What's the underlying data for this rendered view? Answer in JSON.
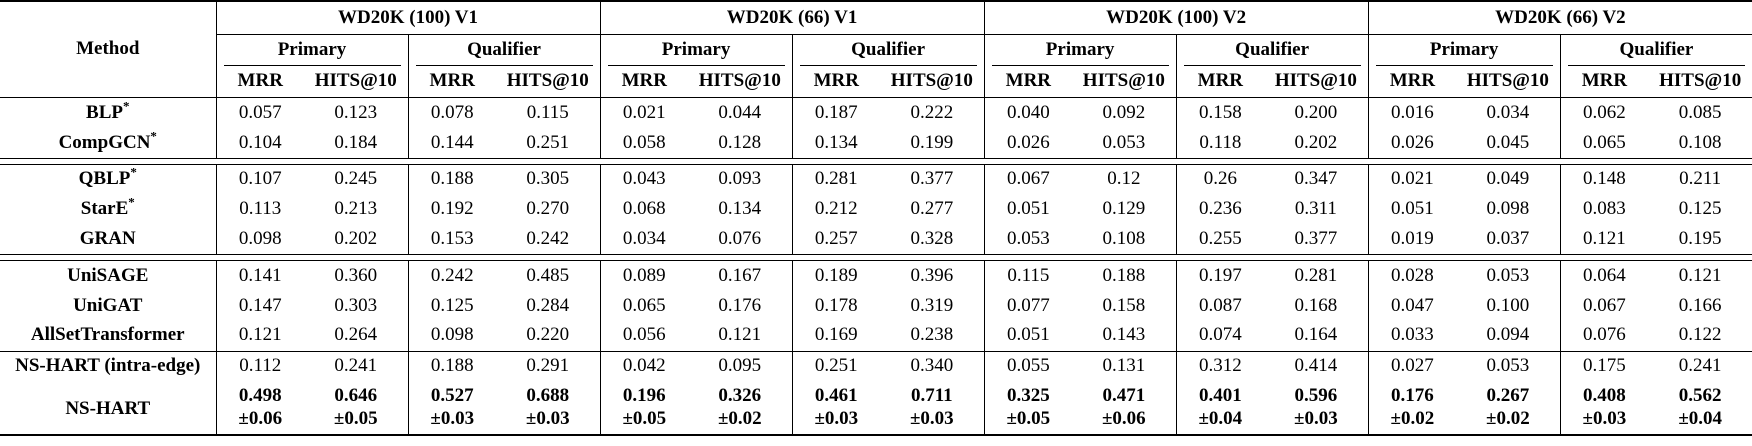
{
  "table": {
    "method_header": "Method",
    "col_groups": [
      "WD20K (100) V1",
      "WD20K (66) V1",
      "WD20K (100) V2",
      "WD20K (66) V2"
    ],
    "sub_groups": [
      "Primary",
      "Qualifier"
    ],
    "metrics": [
      "MRR",
      "HITS@10"
    ],
    "row_groups": [
      {
        "separator_after": "double",
        "rows": [
          {
            "method": "BLP",
            "sup": "*",
            "values": [
              "0.057",
              "0.123",
              "0.078",
              "0.115",
              "0.021",
              "0.044",
              "0.187",
              "0.222",
              "0.040",
              "0.092",
              "0.158",
              "0.200",
              "0.016",
              "0.034",
              "0.062",
              "0.085"
            ]
          },
          {
            "method": "CompGCN",
            "sup": "*",
            "values": [
              "0.104",
              "0.184",
              "0.144",
              "0.251",
              "0.058",
              "0.128",
              "0.134",
              "0.199",
              "0.026",
              "0.053",
              "0.118",
              "0.202",
              "0.026",
              "0.045",
              "0.065",
              "0.108"
            ]
          }
        ]
      },
      {
        "separator_after": "double",
        "rows": [
          {
            "method": "QBLP",
            "sup": "*",
            "values": [
              "0.107",
              "0.245",
              "0.188",
              "0.305",
              "0.043",
              "0.093",
              "0.281",
              "0.377",
              "0.067",
              "0.12",
              "0.26",
              "0.347",
              "0.021",
              "0.049",
              "0.148",
              "0.211"
            ]
          },
          {
            "method": "StarE",
            "sup": "*",
            "values": [
              "0.113",
              "0.213",
              "0.192",
              "0.270",
              "0.068",
              "0.134",
              "0.212",
              "0.277",
              "0.051",
              "0.129",
              "0.236",
              "0.311",
              "0.051",
              "0.098",
              "0.083",
              "0.125"
            ]
          },
          {
            "method": "GRAN",
            "sup": "",
            "values": [
              "0.098",
              "0.202",
              "0.153",
              "0.242",
              "0.034",
              "0.076",
              "0.257",
              "0.328",
              "0.053",
              "0.108",
              "0.255",
              "0.377",
              "0.019",
              "0.037",
              "0.121",
              "0.195"
            ]
          }
        ]
      },
      {
        "separator_after": "single",
        "rows": [
          {
            "method": "UniSAGE",
            "sup": "",
            "values": [
              "0.141",
              "0.360",
              "0.242",
              "0.485",
              "0.089",
              "0.167",
              "0.189",
              "0.396",
              "0.115",
              "0.188",
              "0.197",
              "0.281",
              "0.028",
              "0.053",
              "0.064",
              "0.121"
            ]
          },
          {
            "method": "UniGAT",
            "sup": "",
            "values": [
              "0.147",
              "0.303",
              "0.125",
              "0.284",
              "0.065",
              "0.176",
              "0.178",
              "0.319",
              "0.077",
              "0.158",
              "0.087",
              "0.168",
              "0.047",
              "0.100",
              "0.067",
              "0.166"
            ]
          },
          {
            "method": "AllSetTransformer",
            "sup": "",
            "values": [
              "0.121",
              "0.264",
              "0.098",
              "0.220",
              "0.056",
              "0.121",
              "0.169",
              "0.238",
              "0.051",
              "0.143",
              "0.074",
              "0.164",
              "0.033",
              "0.094",
              "0.076",
              "0.122"
            ]
          }
        ]
      },
      {
        "separator_after": "none",
        "rows": [
          {
            "method": "NS-HART (intra-edge)",
            "sup": "",
            "values": [
              "0.112",
              "0.241",
              "0.188",
              "0.291",
              "0.042",
              "0.095",
              "0.251",
              "0.340",
              "0.055",
              "0.131",
              "0.312",
              "0.414",
              "0.027",
              "0.053",
              "0.175",
              "0.241"
            ]
          },
          {
            "method": "NS-HART",
            "sup": "",
            "bold": true,
            "values": [
              "0.498",
              "0.646",
              "0.527",
              "0.688",
              "0.196",
              "0.326",
              "0.461",
              "0.711",
              "0.325",
              "0.471",
              "0.401",
              "0.596",
              "0.176",
              "0.267",
              "0.408",
              "0.562"
            ],
            "errors": [
              "±0.06",
              "±0.05",
              "±0.03",
              "±0.03",
              "±0.05",
              "±0.02",
              "±0.03",
              "±0.03",
              "±0.05",
              "±0.06",
              "±0.04",
              "±0.03",
              "±0.02",
              "±0.02",
              "±0.03",
              "±0.04"
            ]
          }
        ]
      }
    ]
  }
}
